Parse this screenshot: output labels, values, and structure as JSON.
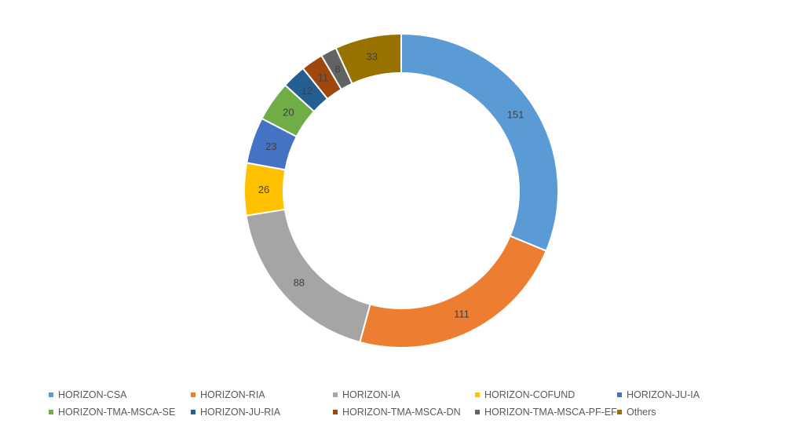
{
  "chart_data": {
    "type": "pie",
    "subtype": "donut",
    "title": "",
    "categories": [
      "HORIZON-CSA",
      "HORIZON-RIA",
      "HORIZON-IA",
      "HORIZON-COFUND",
      "HORIZON-JU-IA",
      "HORIZON-TMA-MSCA-SE",
      "HORIZON-JU-RIA",
      "HORIZON-TMA-MSCA-DN",
      "HORIZON-TMA-MSCA-PF-EF",
      "Others"
    ],
    "values": [
      151,
      111,
      88,
      26,
      23,
      20,
      12,
      11,
      8,
      33
    ],
    "colors": [
      "#5B9BD5",
      "#ED7D31",
      "#A5A5A5",
      "#FFC000",
      "#4472C4",
      "#70AD47",
      "#255E91",
      "#9E480E",
      "#636363",
      "#997300"
    ],
    "legend_position": "bottom",
    "data_labels": true
  }
}
